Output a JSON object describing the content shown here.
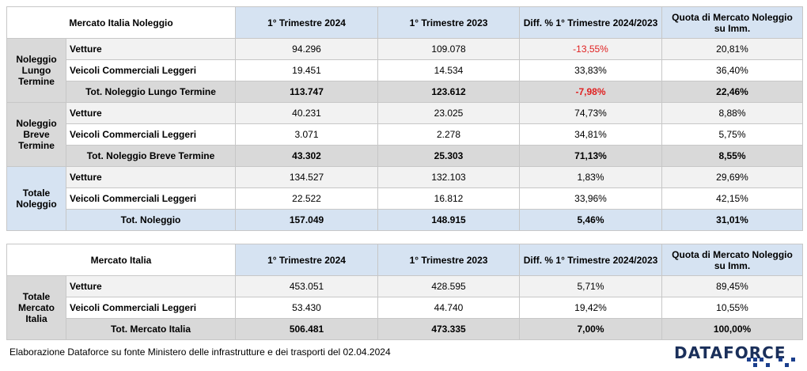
{
  "table1": {
    "headers": [
      "Mercato Italia Noleggio",
      "1° Trimestre 2024",
      "1° Trimestre 2023",
      "Diff. % 1° Trimestre 2024/2023",
      "Quota di Mercato Noleggio su Imm."
    ],
    "groups": [
      {
        "label": "Noleggio Lungo Termine",
        "rows": [
          {
            "label": "Vetture",
            "q2024": "94.296",
            "q2023": "109.078",
            "diff": "-13,55%",
            "quota": "20,81%"
          },
          {
            "label": "Veicoli Commerciali Leggeri",
            "q2024": "19.451",
            "q2023": "14.534",
            "diff": "33,83%",
            "quota": "36,40%"
          }
        ],
        "total": {
          "label": "Tot. Noleggio Lungo Termine",
          "q2024": "113.747",
          "q2023": "123.612",
          "diff": "-7,98%",
          "quota": "22,46%"
        }
      },
      {
        "label": "Noleggio Breve Termine",
        "rows": [
          {
            "label": "Vetture",
            "q2024": "40.231",
            "q2023": "23.025",
            "diff": "74,73%",
            "quota": "8,88%"
          },
          {
            "label": "Veicoli Commerciali Leggeri",
            "q2024": "3.071",
            "q2023": "2.278",
            "diff": "34,81%",
            "quota": "5,75%"
          }
        ],
        "total": {
          "label": "Tot. Noleggio Breve Termine",
          "q2024": "43.302",
          "q2023": "25.303",
          "diff": "71,13%",
          "quota": "8,55%"
        }
      },
      {
        "label": "Totale Noleggio",
        "rows": [
          {
            "label": "Vetture",
            "q2024": "134.527",
            "q2023": "132.103",
            "diff": "1,83%",
            "quota": "29,69%"
          },
          {
            "label": "Veicoli Commerciali Leggeri",
            "q2024": "22.522",
            "q2023": "16.812",
            "diff": "33,96%",
            "quota": "42,15%"
          }
        ],
        "total": {
          "label": "Tot. Noleggio",
          "q2024": "157.049",
          "q2023": "148.915",
          "diff": "5,46%",
          "quota": "31,01%"
        }
      }
    ]
  },
  "table2": {
    "headers": [
      "Mercato Italia",
      "1° Trimestre 2024",
      "1° Trimestre 2023",
      "Diff. % 1° Trimestre 2024/2023",
      "Quota di Mercato Noleggio su Imm."
    ],
    "group": {
      "label": "Totale Mercato Italia",
      "rows": [
        {
          "label": "Vetture",
          "q2024": "453.051",
          "q2023": "428.595",
          "diff": "5,71%",
          "quota": "89,45%"
        },
        {
          "label": "Veicoli Commerciali Leggeri",
          "q2024": "53.430",
          "q2023": "44.740",
          "diff": "19,42%",
          "quota": "10,55%"
        }
      ],
      "total": {
        "label": "Tot. Mercato Italia",
        "q2024": "506.481",
        "q2023": "473.335",
        "diff": "7,00%",
        "quota": "100,00%"
      }
    }
  },
  "footnote": "Elaborazione Dataforce su fonte Ministero delle infrastrutture e dei trasporti del 02.04.2024",
  "logo": {
    "text": "DATAFORCE"
  },
  "colors": {
    "header_blue": "#d6e3f2",
    "total_grey": "#d9d9d9",
    "negative_red": "#e02020",
    "logo_navy": "#1a2f5a"
  }
}
